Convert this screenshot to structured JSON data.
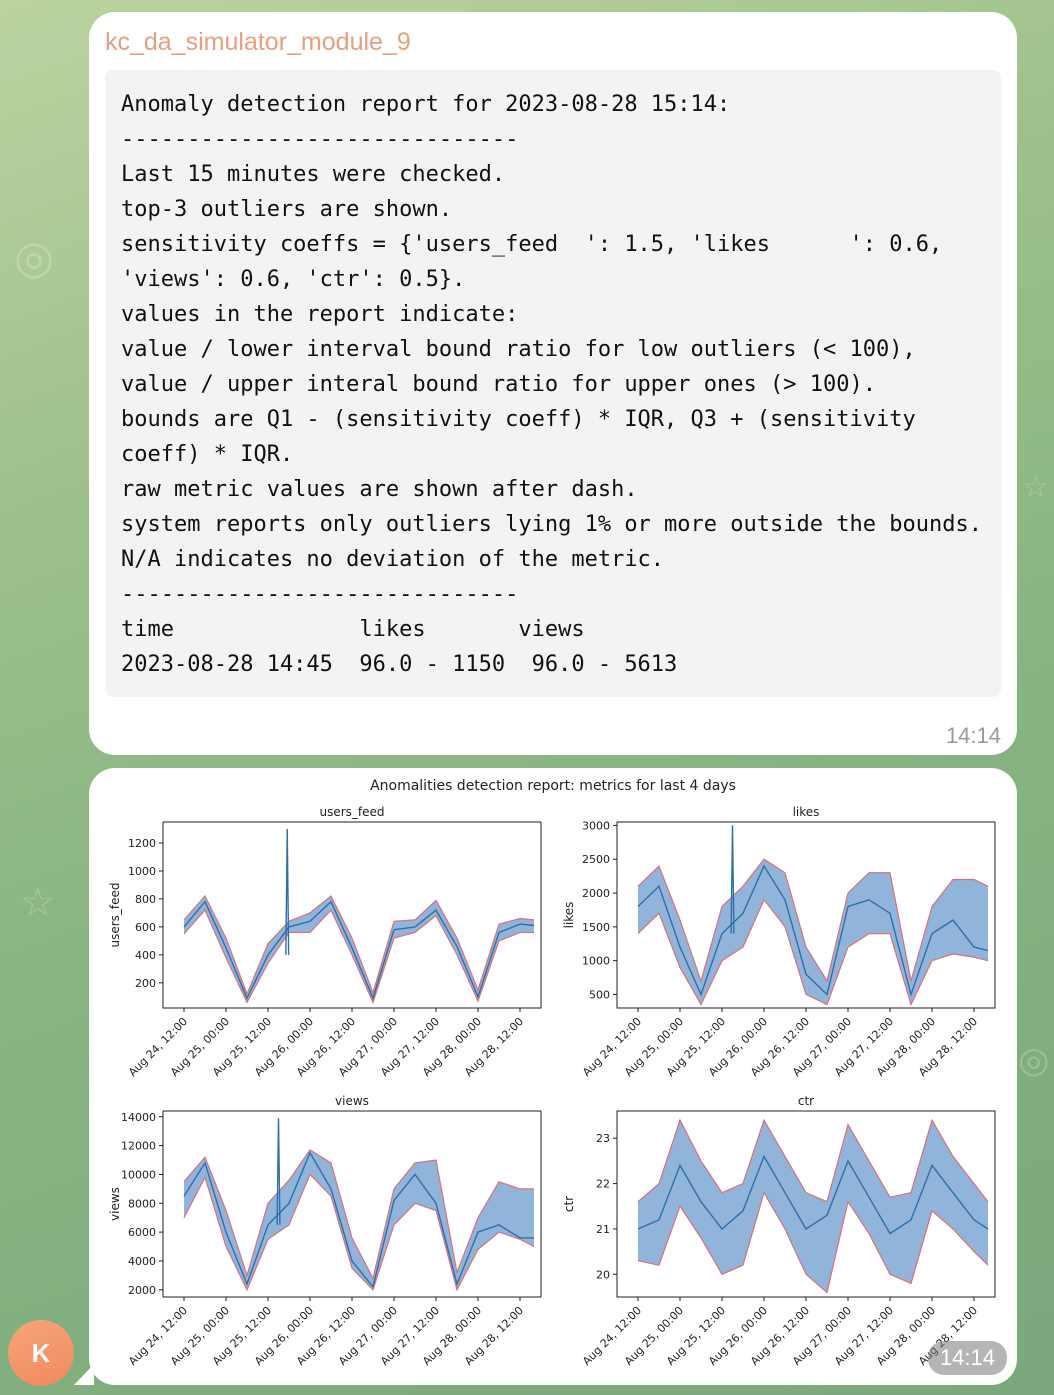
{
  "message1": {
    "sender": "kc_da_simulator_module_9",
    "lines": [
      "Anomaly detection report for 2023-08-28 15:14:",
      "------------------------------",
      "Last 15 minutes were checked.",
      "top-3 outliers are shown.",
      "sensitivity coeffs = {'users_feed  ': 1.5, 'likes      ': 0.6,",
      "'views': 0.6, 'ctr': 0.5}.",
      "values in the report indicate:",
      "value / lower interval bound ratio for low outliers (< 100),",
      "value / upper interal bound ratio for upper ones (> 100).",
      "bounds are Q1 - (sensitivity coeff) * IQR, Q3 + (sensitivity",
      "coeff) * IQR.",
      "raw metric values are shown after dash.",
      "system reports only outliers lying 1% or more outside the bounds.",
      "N/A indicates no deviation of the metric.",
      "------------------------------",
      "time              likes       views",
      "2023-08-28 14:45  96.0 - 1150  96.0 - 5613"
    ],
    "time": "14:14"
  },
  "message2": {
    "time": "14:14"
  },
  "avatar": {
    "initial": "K",
    "color": "#f29466"
  },
  "colors": {
    "band": "#7da7d4",
    "bound": "#d9717a",
    "line": "#2f6fa8"
  },
  "chart_data": {
    "type": "line",
    "title": "Anomalities detection report: metrics for last 4 days",
    "x_ticks": [
      "Aug 24, 12:00",
      "Aug 25, 00:00",
      "Aug 25, 12:00",
      "Aug 26, 00:00",
      "Aug 26, 12:00",
      "Aug 27, 00:00",
      "Aug 27, 12:00",
      "Aug 28, 00:00",
      "Aug 28, 12:00"
    ],
    "x_range_hours": [
      -6,
      102
    ],
    "panels": [
      {
        "title": "users_feed",
        "ylabel": "users_feed",
        "yticks": [
          200,
          400,
          600,
          800,
          1000,
          1200
        ],
        "ylim": [
          20,
          1350
        ],
        "x": [
          0,
          6,
          12,
          18,
          24,
          30,
          36,
          42,
          48,
          54,
          60,
          66,
          72,
          78,
          84,
          90,
          96,
          100
        ],
        "value": [
          600,
          780,
          450,
          90,
          400,
          600,
          640,
          780,
          450,
          90,
          580,
          600,
          720,
          460,
          100,
          560,
          620,
          610
        ],
        "lower": [
          550,
          720,
          380,
          60,
          340,
          560,
          560,
          720,
          400,
          60,
          520,
          560,
          680,
          400,
          70,
          500,
          560,
          560
        ],
        "upper": [
          650,
          820,
          520,
          120,
          480,
          640,
          700,
          820,
          520,
          130,
          640,
          650,
          790,
          520,
          150,
          620,
          660,
          650
        ],
        "spikes": [
          {
            "x": 29.5,
            "y": 1300
          }
        ]
      },
      {
        "title": "likes",
        "ylabel": "likes",
        "yticks": [
          500,
          1000,
          1500,
          2000,
          2500,
          3000
        ],
        "ylim": [
          300,
          3050
        ],
        "x": [
          0,
          6,
          12,
          18,
          24,
          30,
          36,
          42,
          48,
          54,
          60,
          66,
          72,
          78,
          84,
          90,
          96,
          100
        ],
        "value": [
          1800,
          2100,
          1200,
          500,
          1400,
          1700,
          2400,
          1900,
          800,
          500,
          1800,
          1900,
          1700,
          500,
          1400,
          1600,
          1200,
          1150
        ],
        "lower": [
          1400,
          1700,
          900,
          350,
          1000,
          1200,
          1900,
          1500,
          500,
          350,
          1200,
          1400,
          1400,
          350,
          1000,
          1100,
          1050,
          1000
        ],
        "upper": [
          2100,
          2400,
          1600,
          700,
          1800,
          2100,
          2500,
          2300,
          1200,
          700,
          2000,
          2300,
          2300,
          700,
          1800,
          2200,
          2200,
          2100
        ],
        "spikes": [
          {
            "x": 27,
            "y": 3000
          }
        ]
      },
      {
        "title": "views",
        "ylabel": "views",
        "yticks": [
          2000,
          4000,
          6000,
          8000,
          10000,
          12000,
          14000
        ],
        "ylim": [
          1500,
          14400
        ],
        "x": [
          0,
          6,
          12,
          18,
          24,
          30,
          36,
          42,
          48,
          54,
          60,
          66,
          72,
          78,
          84,
          90,
          96,
          100
        ],
        "value": [
          8500,
          10800,
          6000,
          2400,
          6500,
          8000,
          11500,
          9000,
          4000,
          2200,
          8200,
          10000,
          8000,
          2400,
          6000,
          6500,
          5600,
          5600
        ],
        "lower": [
          7000,
          9800,
          5000,
          2000,
          5500,
          6500,
          10000,
          8500,
          3500,
          2000,
          6500,
          8000,
          7500,
          2000,
          4800,
          6000,
          5500,
          5000
        ],
        "upper": [
          9500,
          11200,
          7500,
          3000,
          8000,
          9600,
          11700,
          10800,
          5600,
          2800,
          9000,
          10800,
          11000,
          3200,
          7000,
          9500,
          9000,
          9000
        ],
        "spikes": [
          {
            "x": 27,
            "y": 13900
          }
        ]
      },
      {
        "title": "ctr",
        "ylabel": "ctr",
        "yticks": [
          20,
          21,
          22,
          23
        ],
        "ylim": [
          19.5,
          23.6
        ],
        "x": [
          0,
          6,
          12,
          18,
          24,
          30,
          36,
          42,
          48,
          54,
          60,
          66,
          72,
          78,
          84,
          90,
          96,
          100
        ],
        "value": [
          21.0,
          21.2,
          22.4,
          21.6,
          21.0,
          21.4,
          22.6,
          21.8,
          21.0,
          21.3,
          22.5,
          21.7,
          20.9,
          21.2,
          22.4,
          21.8,
          21.2,
          21.0
        ],
        "lower": [
          20.3,
          20.2,
          21.5,
          20.8,
          20.0,
          20.2,
          21.8,
          21.0,
          20.0,
          19.6,
          21.6,
          20.9,
          20.0,
          19.8,
          21.4,
          21.0,
          20.5,
          20.2
        ],
        "upper": [
          21.6,
          22.0,
          23.4,
          22.5,
          21.8,
          22.0,
          23.4,
          22.6,
          21.8,
          21.6,
          23.3,
          22.5,
          21.7,
          21.8,
          23.4,
          22.6,
          22.0,
          21.6
        ],
        "spikes": []
      }
    ]
  }
}
